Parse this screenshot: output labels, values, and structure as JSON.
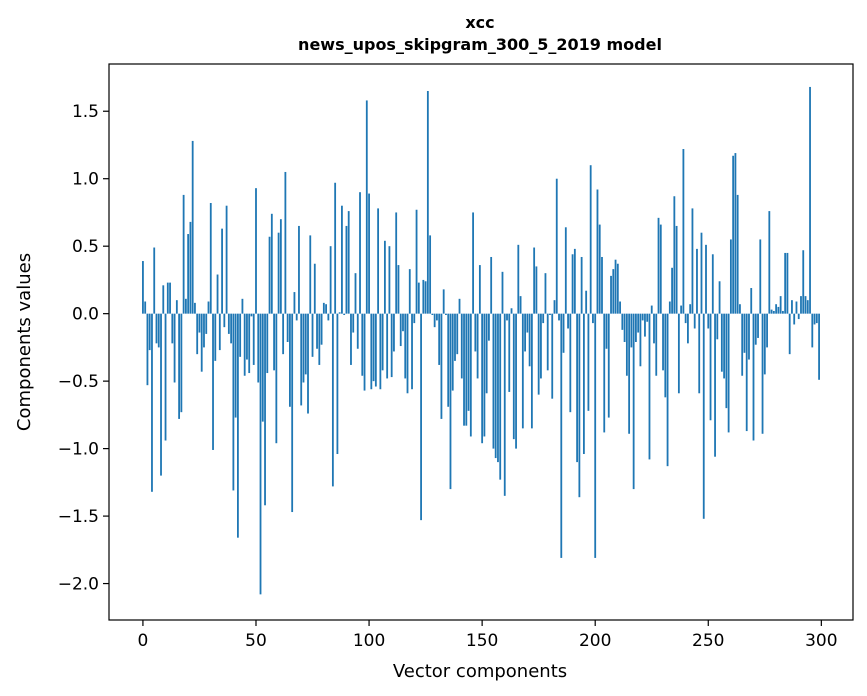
{
  "chart_data": {
    "type": "bar",
    "title": "xcc",
    "subtitle": "news_upos_skipgram_300_5_2019 model",
    "xlabel": "Vector components",
    "ylabel": "Components values",
    "xlim": [
      -15,
      314
    ],
    "ylim": [
      -2.27,
      1.85
    ],
    "xticks": [
      0,
      50,
      100,
      150,
      200,
      250,
      300
    ],
    "yticks": [
      -2.0,
      -1.5,
      -1.0,
      -0.5,
      0.0,
      0.5,
      1.0,
      1.5
    ],
    "ytick_labels": [
      "−2.0",
      "−1.5",
      "−1.0",
      "−0.5",
      "0.0",
      "0.5",
      "1.0",
      "1.5"
    ],
    "grid": false,
    "bar_color": "#1f77b4",
    "values": [
      0.39,
      0.09,
      -0.53,
      -0.27,
      -1.32,
      0.49,
      -0.22,
      -0.25,
      -1.2,
      0.21,
      -0.94,
      0.23,
      0.23,
      -0.22,
      -0.51,
      0.1,
      -0.78,
      -0.73,
      0.88,
      0.11,
      0.59,
      0.68,
      1.28,
      0.08,
      -0.3,
      -0.14,
      -0.43,
      -0.25,
      -0.15,
      0.09,
      0.82,
      -1.01,
      -0.35,
      0.29,
      -0.27,
      0.63,
      -0.1,
      0.8,
      -0.15,
      -0.22,
      -1.31,
      -0.77,
      -1.66,
      -0.32,
      0.11,
      -0.46,
      -0.34,
      -0.44,
      -0.02,
      -0.38,
      0.93,
      -0.51,
      -2.08,
      -0.8,
      -1.42,
      -0.44,
      0.57,
      0.74,
      -0.42,
      -0.96,
      0.6,
      0.7,
      -0.3,
      1.05,
      -0.21,
      -0.69,
      -1.47,
      0.16,
      -0.05,
      0.65,
      -0.68,
      -0.51,
      -0.45,
      -0.74,
      0.58,
      -0.32,
      0.37,
      -0.26,
      -0.38,
      -0.23,
      0.08,
      0.07,
      -0.05,
      0.5,
      -1.28,
      0.97,
      -1.04,
      0.01,
      0.8,
      -0.01,
      0.65,
      0.76,
      -0.38,
      -0.14,
      0.3,
      -0.26,
      0.9,
      -0.46,
      -0.57,
      1.58,
      0.89,
      -0.56,
      -0.5,
      -0.54,
      0.78,
      -0.56,
      -0.42,
      0.54,
      -0.48,
      0.5,
      -0.47,
      -0.28,
      0.75,
      0.36,
      -0.24,
      -0.13,
      -0.48,
      -0.59,
      0.33,
      -0.56,
      -0.07,
      0.77,
      0.23,
      -1.53,
      0.25,
      0.24,
      1.65,
      0.58,
      -0.01,
      -0.1,
      -0.05,
      -0.38,
      -0.78,
      0.18,
      -0.01,
      -0.69,
      -1.3,
      -0.57,
      -0.35,
      -0.3,
      0.11,
      -0.48,
      -0.83,
      -0.83,
      -0.72,
      -0.91,
      0.75,
      -0.28,
      -0.48,
      0.36,
      -0.96,
      -0.91,
      -0.59,
      -0.2,
      0.42,
      -1.0,
      -1.07,
      -1.1,
      -1.23,
      0.31,
      -1.35,
      -0.05,
      -0.58,
      0.04,
      -0.93,
      -1.0,
      0.51,
      0.13,
      -0.85,
      -0.28,
      -0.14,
      -0.39,
      -0.85,
      0.49,
      0.35,
      -0.6,
      -0.48,
      -0.07,
      0.3,
      -0.42,
      -0.01,
      -0.63,
      0.1,
      1.0,
      -0.05,
      -1.81,
      -0.29,
      0.64,
      -0.11,
      -0.73,
      0.44,
      0.48,
      -1.1,
      -1.36,
      0.42,
      -1.04,
      0.17,
      -0.72,
      1.1,
      -0.07,
      -1.81,
      0.92,
      0.66,
      0.42,
      -0.88,
      -0.26,
      -0.77,
      0.28,
      0.33,
      0.4,
      0.37,
      0.09,
      -0.12,
      -0.21,
      -0.46,
      -0.89,
      -0.25,
      -1.3,
      -0.21,
      -0.14,
      -0.39,
      -0.05,
      -0.17,
      -0.06,
      -1.08,
      0.06,
      -0.22,
      -0.46,
      0.71,
      0.66,
      -0.42,
      -0.62,
      -1.13,
      0.09,
      0.34,
      0.87,
      0.65,
      -0.59,
      0.06,
      1.22,
      -0.07,
      -0.22,
      0.07,
      0.78,
      -0.11,
      0.48,
      -0.59,
      0.6,
      -1.52,
      0.51,
      -0.11,
      -0.79,
      0.44,
      -1.06,
      -0.19,
      0.24,
      -0.43,
      -0.48,
      -0.7,
      -0.88,
      0.55,
      1.17,
      1.19,
      0.88,
      0.07,
      -0.46,
      -0.29,
      -0.87,
      -0.34,
      0.19,
      -0.94,
      -0.23,
      -0.18,
      0.55,
      -0.89,
      -0.45,
      -0.25,
      0.76,
      0.03,
      0.02,
      0.07,
      0.05,
      0.13,
      0.02,
      0.45,
      0.45,
      -0.3,
      0.1,
      -0.08,
      0.09,
      -0.04,
      0.13,
      0.47,
      0.13,
      0.1,
      1.68,
      -0.25,
      -0.08,
      -0.07,
      -0.49
    ]
  }
}
